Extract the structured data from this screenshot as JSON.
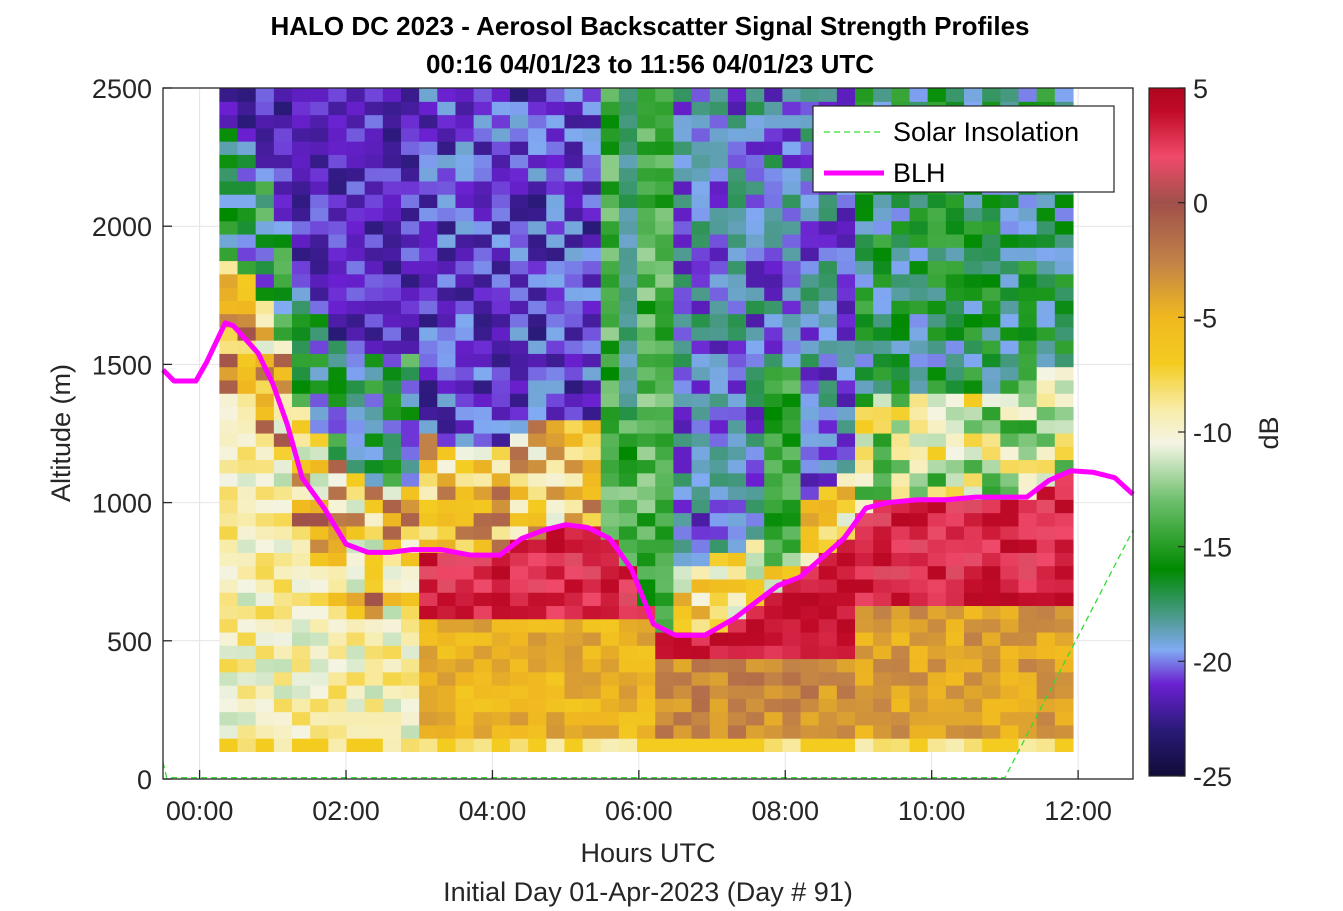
{
  "chart_data": {
    "type": "heatmap",
    "title": "HALO DC 2023 - Aerosol Backscatter Signal Strength Profiles",
    "subtitle": "00:16 04/01/23 to 11:56 04/01/23  UTC",
    "xlabel": "Hours UTC",
    "xlabel2": "Initial Day 01-Apr-2023 (Day # 91)",
    "ylabel": "Altitude (m)",
    "xlim": [
      -0.5,
      12.75
    ],
    "ylim": [
      0,
      2500
    ],
    "x_ticks": [
      0,
      2,
      4,
      6,
      8,
      10,
      12
    ],
    "x_tick_labels": [
      "00:00",
      "02:00",
      "04:00",
      "06:00",
      "08:00",
      "10:00",
      "12:00"
    ],
    "y_ticks": [
      0,
      500,
      1000,
      1500,
      2000,
      2500
    ],
    "y_tick_labels": [
      "0",
      "500",
      "1000",
      "1500",
      "2000",
      "2500"
    ],
    "grid": true,
    "legend_position": "top-right",
    "colorbar": {
      "label": "dB",
      "range": [
        -25,
        5
      ],
      "ticks": [
        5,
        0,
        -5,
        -10,
        -15,
        -20,
        -25
      ],
      "tick_labels": [
        "5",
        "0",
        "-5",
        "-10",
        "-15",
        "-20",
        "-25"
      ]
    },
    "heatmap": {
      "x_start_hour": 0.27,
      "x_end_hour": 11.93,
      "y_bottom_m": 100,
      "y_top_m": 2500,
      "note_units": "dB"
    },
    "series": [
      {
        "name": "Solar Insolation",
        "style": "dashed",
        "color": "#33dd33",
        "x": [
          -0.5,
          -0.45,
          11.0,
          12.75
        ],
        "y": [
          60,
          5,
          5,
          900
        ]
      },
      {
        "name": "BLH",
        "style": "solid",
        "color": "#ff00ff",
        "x": [
          -0.5,
          -0.35,
          -0.05,
          0.1,
          0.35,
          0.46,
          0.8,
          1.0,
          1.2,
          1.4,
          1.7,
          2.0,
          2.3,
          2.6,
          2.9,
          3.3,
          3.7,
          4.1,
          4.4,
          4.7,
          5.0,
          5.3,
          5.6,
          5.9,
          6.2,
          6.5,
          6.9,
          7.3,
          7.6,
          7.9,
          8.2,
          8.5,
          8.8,
          9.1,
          9.4,
          9.8,
          10.2,
          10.6,
          11.0,
          11.3,
          11.6,
          11.9,
          12.2,
          12.5,
          12.75
        ],
        "y": [
          1480,
          1440,
          1440,
          1510,
          1650,
          1640,
          1540,
          1430,
          1280,
          1090,
          980,
          850,
          820,
          820,
          830,
          830,
          810,
          810,
          870,
          900,
          920,
          910,
          870,
          760,
          560,
          520,
          520,
          580,
          640,
          700,
          730,
          800,
          870,
          980,
          1000,
          1010,
          1010,
          1020,
          1020,
          1020,
          1080,
          1115,
          1110,
          1090,
          1030
        ]
      }
    ],
    "colormap_stops": [
      {
        "db": -25,
        "color": "#100c38"
      },
      {
        "db": -23,
        "color": "#2a1a78"
      },
      {
        "db": -21,
        "color": "#6a20d0"
      },
      {
        "db": -19.5,
        "color": "#80aaf2"
      },
      {
        "db": -18,
        "color": "#4a9a8a"
      },
      {
        "db": -16,
        "color": "#008a00"
      },
      {
        "db": -13,
        "color": "#6cbf6c"
      },
      {
        "db": -10.5,
        "color": "#f4f4e4"
      },
      {
        "db": -9,
        "color": "#f8eca8"
      },
      {
        "db": -7,
        "color": "#f4cc20"
      },
      {
        "db": -5,
        "color": "#f0b820"
      },
      {
        "db": -2.5,
        "color": "#c08048"
      },
      {
        "db": 0,
        "color": "#a0504a"
      },
      {
        "db": 2,
        "color": "#f04a6a"
      },
      {
        "db": 4,
        "color": "#c00a28"
      },
      {
        "db": 5,
        "color": "#b0061e"
      }
    ]
  }
}
